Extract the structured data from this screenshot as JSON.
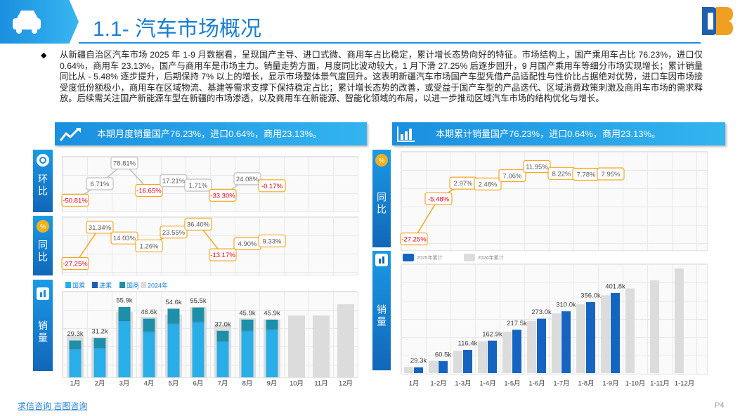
{
  "header": {
    "title": "1.1- 汽车市场概况"
  },
  "summary": "从新疆自治区汽车市场 2025 年 1-9 月数据看，呈现国产主导、进口式微、商用车占比稳定，累计增长态势向好的特征。市场结构上，国产乘用车占比 76.23%，进口仅 0.64%，商用车 23.13%，国产与商用车是市场主力。销量走势方面，月度同比波动较大，1 月下滑 27.25% 后逐步回升，9 月国产乘用车等细分市场实现增长；累计销量同比从 - 5.48% 逐步提升，后期保持 7% 以上的增长，显示市场整体景气度回升。这表明新疆汽车市场国产车型凭借产品适配性与性价比占据绝对优势，进口车因市场接受度低份额极小，商用车在区域物流、基建等需求支撑下保持稳定占比；累计增长态势的改善，或受益于国产车型的产品迭代、区域消费政策刺激及商用车市场的需求释放。后续需关注国产新能源车型在新疆的市场渗透，以及商用车在新能源、智能化领域的布局，以进一步推动区域汽车市场的结构优化与增长。",
  "panels": [
    {
      "banner": "本期月度销量国产76.23%，进口0.64%，商用23.13%。"
    },
    {
      "banner": "本期累计销量国产76.23%，进口0.64%，商用23.13%。"
    }
  ],
  "chart_data": [
    {
      "type": "line",
      "title": "环比",
      "values": [
        -50.81,
        6.71,
        78.81,
        -16.65,
        17.21,
        1.71,
        -33.3,
        24.08,
        -0.17
      ],
      "value_labels": [
        "-50.81%",
        "6.71%",
        "78.81%",
        "-16.65%",
        "17.21%",
        "1.71%",
        "-33.30%",
        "24.08%",
        "-0.17%"
      ],
      "color": "#bfbfbf",
      "negative_color": "#e0001b"
    },
    {
      "type": "line",
      "title": "同比",
      "values": [
        -27.25,
        31.34,
        14.03,
        1.26,
        23.55,
        36.4,
        -13.17,
        4.9,
        9.33
      ],
      "value_labels": [
        "-27.25%",
        "31.34%",
        "14.03%",
        "1.26%",
        "23.55%",
        "36.40%",
        "-13.17%",
        "4.90%",
        "9.33%"
      ],
      "color": "#f5a623",
      "negative_color": "#e0001b"
    },
    {
      "type": "bar",
      "title": "销量",
      "categories": [
        "1月",
        "2月",
        "3月",
        "4月",
        "5月",
        "6月",
        "7月",
        "8月",
        "9月",
        "10月",
        "11月",
        "12月"
      ],
      "series": [
        {
          "name": "国乘",
          "color": "#29aee8",
          "values": [
            22000,
            23200,
            44700,
            36100,
            42300,
            43900,
            28500,
            36700,
            37800,
            null,
            null,
            null
          ]
        },
        {
          "name": "进乘",
          "color": "#1a5fb4",
          "values": [
            200,
            200,
            300,
            300,
            300,
            400,
            200,
            300,
            300,
            null,
            null,
            null
          ]
        },
        {
          "name": "国商",
          "color": "#1e8fa8",
          "values": [
            7100,
            7800,
            10900,
            10200,
            12000,
            11200,
            8300,
            8900,
            7800,
            null,
            null,
            null
          ]
        }
      ],
      "total_labels": [
        "29.3k",
        "31.2k",
        "55.9k",
        "46.6k",
        "54.6k",
        "55.5k",
        "37.0k",
        "45.9k",
        "45.9k",
        null,
        null,
        null
      ],
      "comparison_series": {
        "name": "2024年",
        "color": "#dcdcdc",
        "values": [
          33000,
          32000,
          52000,
          48000,
          50000,
          56000,
          42000,
          47000,
          46000,
          49200,
          49200,
          58100
        ]
      }
    },
    {
      "type": "line",
      "title": "同比",
      "values": [
        -27.25,
        -5.48,
        2.97,
        2.48,
        7.06,
        11.95,
        8.22,
        7.78,
        7.95
      ],
      "value_labels": [
        "-27.25%",
        "-5.48%",
        "2.97%",
        "2.48%",
        "7.06%",
        "11.95%",
        "8.22%",
        "7.78%",
        "7.95%"
      ],
      "color": "#f5a623",
      "negative_color": "#e0001b"
    },
    {
      "type": "bar",
      "title": "销量",
      "categories": [
        "1月",
        "1-2月",
        "1-3月",
        "1-4月",
        "1-5月",
        "1-6月",
        "1-7月",
        "1-8月",
        "1-9月",
        "1-10月",
        "1-11月",
        "1-12月"
      ],
      "series": [
        {
          "name": "2025年累计",
          "color": "#1565c0",
          "values": [
            29300,
            60500,
            116400,
            162900,
            217500,
            273000,
            310000,
            356000,
            401800,
            null,
            null,
            null
          ],
          "value_labels": [
            "29.3k",
            "60.5k",
            "116.4k",
            "162.9k",
            "217.5k",
            "273.0k",
            "310.0k",
            "356.0k",
            "401.8k",
            null,
            null,
            null
          ]
        }
      ],
      "comparison_series": {
        "name": "2024年累计",
        "color": "#dcdcdc",
        "values": [
          31000,
          62000,
          112000,
          160000,
          208000,
          262000,
          300000,
          345000,
          390000,
          425000,
          465000,
          525000
        ]
      }
    }
  ],
  "footer": {
    "brands": [
      "求信咨询",
      "吉图咨询"
    ],
    "page": "P4"
  }
}
